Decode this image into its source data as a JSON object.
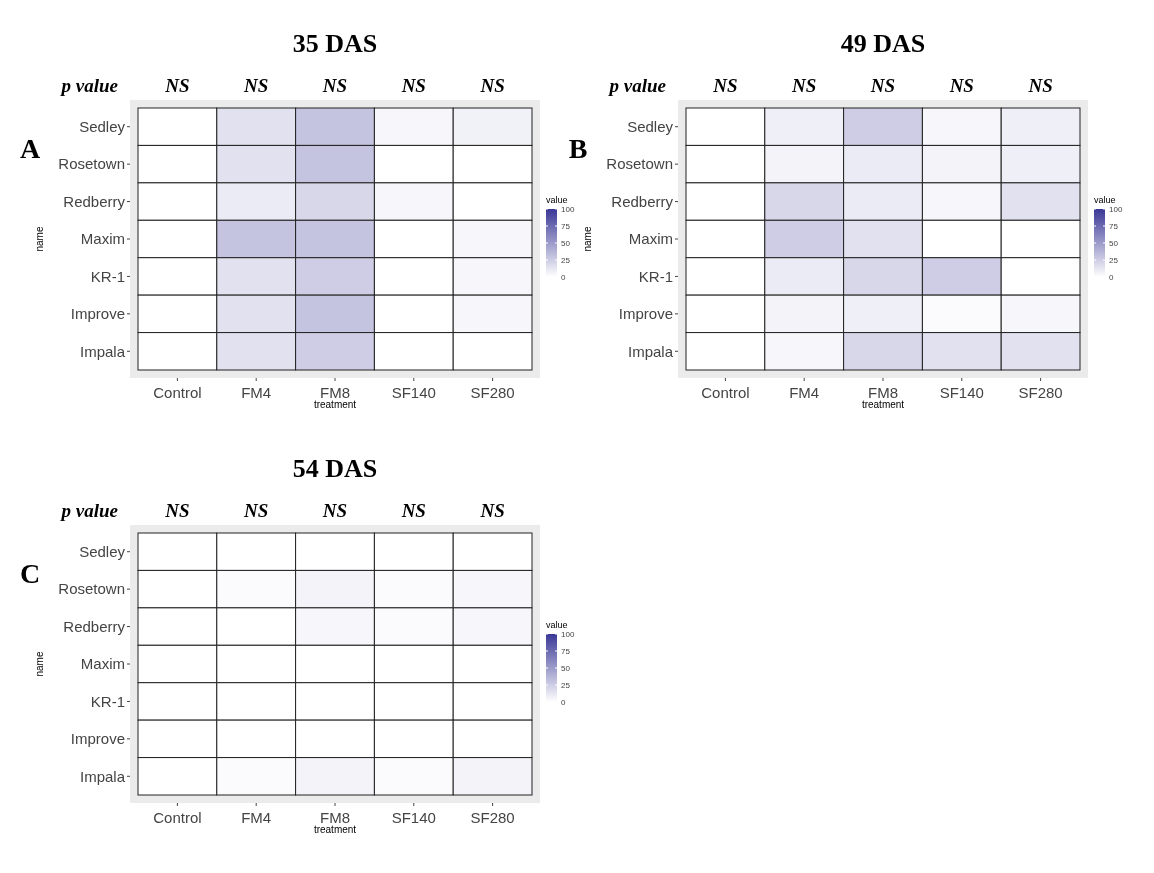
{
  "chart_data": [
    {
      "type": "heatmap",
      "title": "35 DAS",
      "xlabel": "treatment",
      "ylabel": "name",
      "clabel": "value",
      "categories": [
        "Control",
        "FM4",
        "FM8",
        "SF140",
        "SF280"
      ],
      "y_categories": [
        "Sedley",
        "Rosetown",
        "Redberry",
        "Maxim",
        "KR-1",
        "Improve",
        "Impala"
      ],
      "cells": [
        [
          0,
          15,
          30,
          4,
          7
        ],
        [
          0,
          15,
          30,
          0,
          0
        ],
        [
          0,
          10,
          20,
          4,
          0
        ],
        [
          0,
          30,
          30,
          0,
          4
        ],
        [
          0,
          15,
          25,
          0,
          4
        ],
        [
          0,
          15,
          30,
          0,
          4
        ],
        [
          0,
          15,
          25,
          0,
          0
        ]
      ],
      "clim": [
        0,
        100
      ],
      "cticks": [
        0,
        25,
        50,
        75,
        100
      ],
      "annotations": [
        "p value",
        "A",
        "NS",
        "NS",
        "NS",
        "NS",
        "NS"
      ]
    },
    {
      "type": "heatmap",
      "title": "49 DAS",
      "xlabel": "treatment",
      "ylabel": "name",
      "clabel": "value",
      "categories": [
        "Control",
        "FM4",
        "FM8",
        "SF140",
        "SF280"
      ],
      "y_categories": [
        "Sedley",
        "Rosetown",
        "Redberry",
        "Maxim",
        "KR-1",
        "Improve",
        "Impala"
      ],
      "cells": [
        [
          0,
          8,
          25,
          4,
          8
        ],
        [
          0,
          6,
          10,
          6,
          8
        ],
        [
          0,
          20,
          10,
          4,
          15
        ],
        [
          0,
          25,
          15,
          0,
          0
        ],
        [
          0,
          10,
          20,
          25,
          0
        ],
        [
          0,
          6,
          8,
          2,
          4
        ],
        [
          0,
          4,
          20,
          15,
          15
        ]
      ],
      "clim": [
        0,
        100
      ],
      "cticks": [
        0,
        25,
        50,
        75,
        100
      ],
      "annotations": [
        "p value",
        "B",
        "NS",
        "NS",
        "NS",
        "NS",
        "NS"
      ]
    },
    {
      "type": "heatmap",
      "title": "54 DAS",
      "xlabel": "treatment",
      "ylabel": "name",
      "clabel": "value",
      "categories": [
        "Control",
        "FM4",
        "FM8",
        "SF140",
        "SF280"
      ],
      "y_categories": [
        "Sedley",
        "Rosetown",
        "Redberry",
        "Maxim",
        "KR-1",
        "Improve",
        "Impala"
      ],
      "cells": [
        [
          0,
          0,
          0,
          0,
          0
        ],
        [
          0,
          2,
          6,
          2,
          4
        ],
        [
          0,
          0,
          4,
          2,
          4
        ],
        [
          0,
          0,
          0,
          0,
          0
        ],
        [
          0,
          0,
          0,
          0,
          0
        ],
        [
          0,
          0,
          0,
          0,
          0
        ],
        [
          0,
          2,
          6,
          2,
          6
        ]
      ],
      "clim": [
        0,
        100
      ],
      "cticks": [
        0,
        25,
        50,
        75,
        100
      ],
      "annotations": [
        "p value",
        "C",
        "NS",
        "NS",
        "NS",
        "NS",
        "NS"
      ]
    }
  ]
}
